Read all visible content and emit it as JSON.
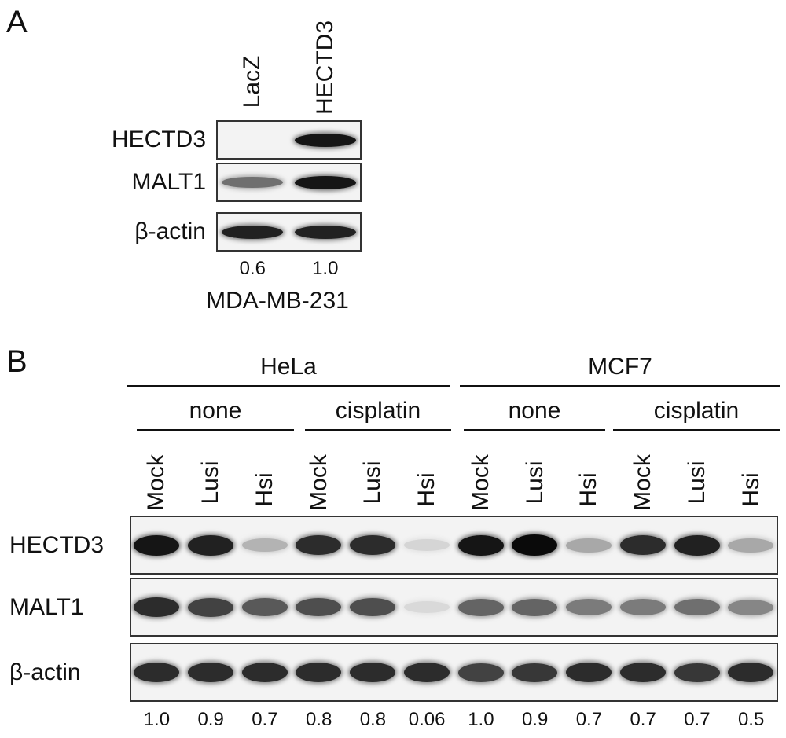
{
  "panel_a": {
    "letter": "A",
    "lanes": [
      {
        "label": "LacZ"
      },
      {
        "label": "HECTD3"
      }
    ],
    "rows": [
      {
        "label": "HECTD3",
        "intensity": [
          0.0,
          0.95
        ]
      },
      {
        "label": "MALT1",
        "intensity": [
          0.55,
          0.95
        ]
      },
      {
        "label": "β-actin",
        "intensity": [
          0.9,
          0.9
        ]
      }
    ],
    "quantification": [
      "0.6",
      "1.0"
    ],
    "cell_line": "MDA-MB-231"
  },
  "panel_b": {
    "letter": "B",
    "cell_lines": [
      "HeLa",
      "MCF7"
    ],
    "treatments": [
      "none",
      "cisplatin",
      "none",
      "cisplatin"
    ],
    "lanes": [
      "Mock",
      "Lusi",
      "Hsi",
      "Mock",
      "Lusi",
      "Hsi",
      "Mock",
      "Lusi",
      "Hsi",
      "Mock",
      "Lusi",
      "Hsi"
    ],
    "rows": [
      {
        "label": "HECTD3",
        "intensity": [
          0.95,
          0.9,
          0.25,
          0.85,
          0.85,
          0.1,
          0.95,
          1.0,
          0.3,
          0.85,
          0.9,
          0.3
        ]
      },
      {
        "label": "MALT1",
        "intensity": [
          0.85,
          0.75,
          0.65,
          0.7,
          0.7,
          0.08,
          0.6,
          0.6,
          0.5,
          0.5,
          0.55,
          0.45
        ]
      },
      {
        "label": "β-actin",
        "intensity": [
          0.85,
          0.85,
          0.85,
          0.85,
          0.85,
          0.85,
          0.75,
          0.8,
          0.85,
          0.85,
          0.8,
          0.85
        ]
      }
    ],
    "quantification": [
      "1.0",
      "0.9",
      "0.7",
      "0.8",
      "0.8",
      "0.06",
      "1.0",
      "0.9",
      "0.7",
      "0.7",
      "0.7",
      "0.5"
    ]
  }
}
